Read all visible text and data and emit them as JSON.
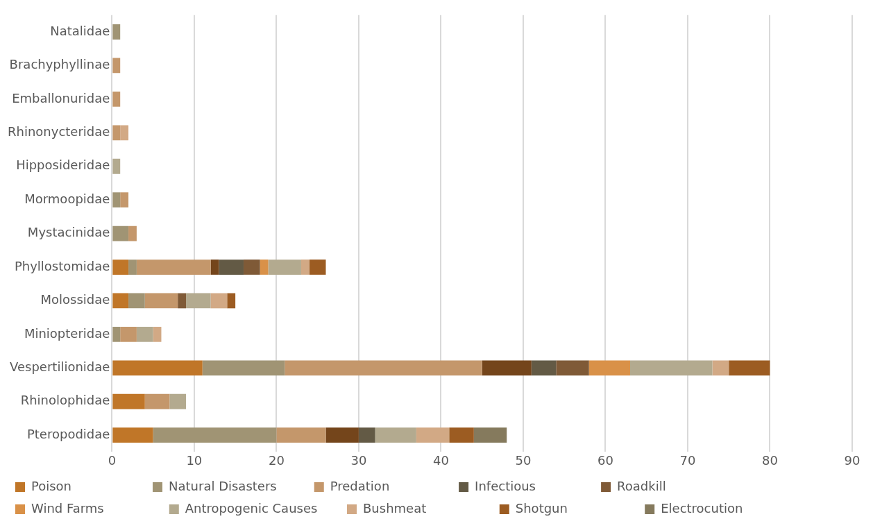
{
  "chart_data": {
    "type": "bar",
    "orientation": "horizontal",
    "stacked": true,
    "grid": "x",
    "legend": "bottom",
    "categories": [
      "Natalidae",
      "Brachyphyllinae",
      "Emballonuridae",
      "Rhinonycteridae",
      "Hipposideridae",
      "Mormoopidae",
      "Mystacinidae",
      "Phyllostomidae",
      "Molossidae",
      "Miniopteridae",
      "Vespertilionidae",
      "Rhinolophidae",
      "Pteropodidae"
    ],
    "xlim": [
      0,
      90
    ],
    "xticks": [
      0,
      10,
      20,
      30,
      40,
      50,
      60,
      70,
      80,
      90
    ],
    "series": [
      {
        "name": "Poison",
        "color": "#c07628",
        "values": [
          null,
          null,
          null,
          null,
          null,
          null,
          null,
          2,
          2,
          null,
          11,
          4,
          5
        ]
      },
      {
        "name": "Natural Disasters",
        "color": "#a09474",
        "values": [
          1,
          null,
          null,
          null,
          null,
          1,
          2,
          1,
          2,
          1,
          10,
          null,
          15
        ]
      },
      {
        "name": "Predation",
        "color": "#c4976b",
        "values": [
          null,
          1,
          1,
          1,
          null,
          1,
          1,
          9,
          4,
          2,
          24,
          3,
          6
        ]
      },
      {
        "color": "#74451b",
        "values": [
          null,
          null,
          null,
          null,
          null,
          null,
          null,
          1,
          null,
          null,
          6,
          null,
          4
        ]
      },
      {
        "name": "Infectious",
        "color": "#635a45",
        "values": [
          null,
          null,
          null,
          null,
          null,
          null,
          null,
          3,
          null,
          null,
          3,
          null,
          2
        ]
      },
      {
        "name": "Roadkill",
        "color": "#7f5a37",
        "values": [
          null,
          null,
          null,
          null,
          null,
          null,
          null,
          2,
          1,
          null,
          4,
          null,
          null
        ]
      },
      {
        "name": "Wind Farms",
        "color": "#d99148",
        "values": [
          null,
          null,
          null,
          null,
          null,
          null,
          null,
          1,
          null,
          null,
          5,
          null,
          null
        ]
      },
      {
        "name": "Antropogenic Causes",
        "color": "#b3aa8f",
        "values": [
          null,
          null,
          null,
          null,
          1,
          null,
          null,
          4,
          3,
          2,
          10,
          2,
          5
        ]
      },
      {
        "name": "Bushmeat",
        "color": "#d2a985",
        "values": [
          null,
          null,
          null,
          1,
          null,
          null,
          null,
          1,
          2,
          1,
          2,
          null,
          4
        ]
      },
      {
        "name": "Shotgun",
        "color": "#9c5c22",
        "values": [
          null,
          null,
          null,
          null,
          null,
          null,
          null,
          2,
          1,
          null,
          5,
          null,
          3
        ]
      },
      {
        "name": "Electrocution",
        "color": "#857a5d",
        "values": [
          null,
          null,
          null,
          null,
          null,
          null,
          null,
          null,
          null,
          null,
          null,
          null,
          4
        ]
      }
    ]
  }
}
